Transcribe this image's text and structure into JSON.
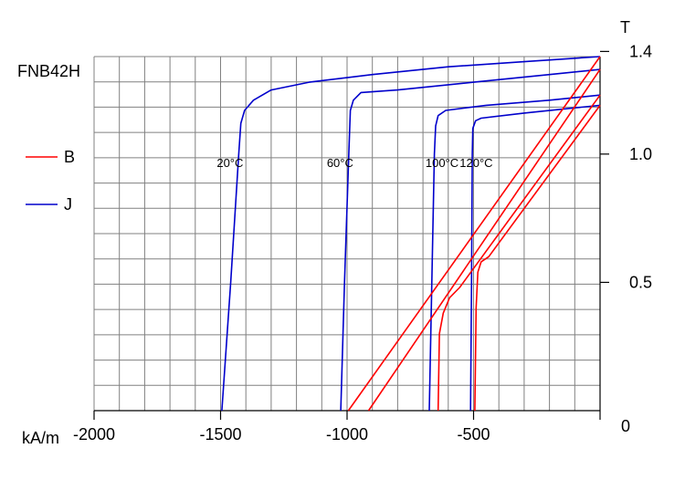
{
  "chart_data": {
    "type": "line",
    "title": "FNB42H",
    "xlabel": "kA/m",
    "ylabel": "T",
    "xlim": [
      -2000,
      0
    ],
    "ylim": [
      0,
      1.38
    ],
    "grid": true,
    "legend": {
      "placement": "left",
      "entries": [
        {
          "label": "B",
          "color": "#ff0000"
        },
        {
          "label": "J",
          "color": "#0000cc"
        }
      ]
    },
    "x_ticks": [
      {
        "value": -2000,
        "label": "-2000"
      },
      {
        "value": -1500,
        "label": "-1500"
      },
      {
        "value": -1000,
        "label": "-1000"
      },
      {
        "value": -500,
        "label": "-500"
      },
      {
        "value": 0,
        "label": "0"
      }
    ],
    "y_ticks": [
      {
        "value": 1.4,
        "label": "1.4"
      },
      {
        "value": 1.0,
        "label": "1.0"
      },
      {
        "value": 0.5,
        "label": "0.5"
      }
    ],
    "temperature_labels": [
      {
        "text": "20°C",
        "x": -1515,
        "y": 0.95
      },
      {
        "text": "60°C",
        "x": -1080,
        "y": 0.95
      },
      {
        "text": "100°C",
        "x": -690,
        "y": 0.95
      },
      {
        "text": "120°C",
        "x": -555,
        "y": 0.95
      }
    ],
    "series": [
      {
        "group": "J",
        "color": "#0000cc",
        "temp": "20°C",
        "points": [
          [
            -1495,
            0
          ],
          [
            -1460,
            0.5
          ],
          [
            -1428,
            1.0
          ],
          [
            -1420,
            1.12
          ],
          [
            -1405,
            1.17
          ],
          [
            -1370,
            1.21
          ],
          [
            -1300,
            1.25
          ],
          [
            -1150,
            1.28
          ],
          [
            -900,
            1.31
          ],
          [
            -600,
            1.34
          ],
          [
            -300,
            1.36
          ],
          [
            0,
            1.38
          ]
        ]
      },
      {
        "group": "J",
        "color": "#0000cc",
        "temp": "60°C",
        "points": [
          [
            -1025,
            0
          ],
          [
            -1010,
            0.5
          ],
          [
            -993,
            1.0
          ],
          [
            -987,
            1.17
          ],
          [
            -975,
            1.21
          ],
          [
            -945,
            1.24
          ],
          [
            -800,
            1.25
          ],
          [
            -500,
            1.28
          ],
          [
            -200,
            1.31
          ],
          [
            0,
            1.33
          ]
        ]
      },
      {
        "group": "J",
        "color": "#0000cc",
        "temp": "100°C",
        "points": [
          [
            -675,
            0
          ],
          [
            -665,
            0.5
          ],
          [
            -655,
            1.0
          ],
          [
            -650,
            1.11
          ],
          [
            -640,
            1.15
          ],
          [
            -610,
            1.17
          ],
          [
            -450,
            1.19
          ],
          [
            -200,
            1.21
          ],
          [
            0,
            1.23
          ]
        ]
      },
      {
        "group": "J",
        "color": "#0000cc",
        "temp": "120°C",
        "points": [
          [
            -512,
            0
          ],
          [
            -508,
            0.5
          ],
          [
            -505,
            1.0
          ],
          [
            -503,
            1.1
          ],
          [
            -492,
            1.13
          ],
          [
            -470,
            1.14
          ],
          [
            -300,
            1.16
          ],
          [
            -100,
            1.18
          ],
          [
            0,
            1.19
          ]
        ]
      },
      {
        "group": "B",
        "color": "#ff0000",
        "temp": "20°C",
        "points": [
          [
            -995,
            0
          ],
          [
            0,
            1.38
          ]
        ]
      },
      {
        "group": "B",
        "color": "#ff0000",
        "temp": "60°C",
        "points": [
          [
            -915,
            0
          ],
          [
            0,
            1.33
          ]
        ]
      },
      {
        "group": "B",
        "color": "#ff0000",
        "temp": "100°C",
        "points": [
          [
            -640,
            0
          ],
          [
            -635,
            0.3
          ],
          [
            -620,
            0.38
          ],
          [
            -595,
            0.44
          ],
          [
            -555,
            0.48
          ],
          [
            0,
            1.23
          ]
        ]
      },
      {
        "group": "B",
        "color": "#ff0000",
        "temp": "120°C",
        "points": [
          [
            -495,
            0
          ],
          [
            -490,
            0.4
          ],
          [
            -483,
            0.54
          ],
          [
            -470,
            0.58
          ],
          [
            -440,
            0.6
          ],
          [
            0,
            1.19
          ]
        ]
      }
    ]
  }
}
